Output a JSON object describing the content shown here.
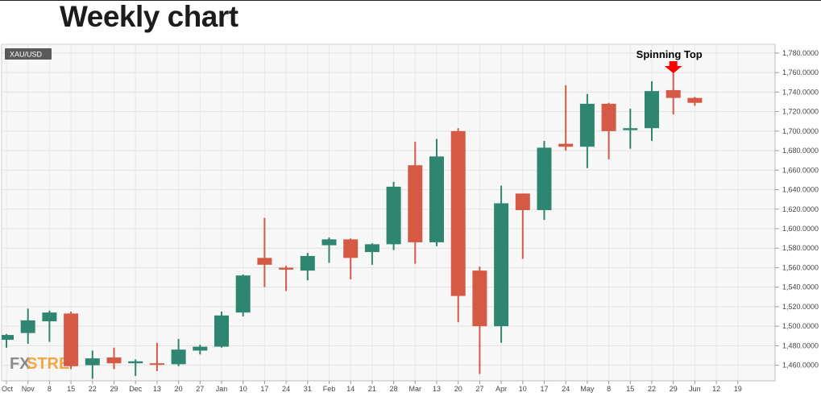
{
  "page": {
    "title": "Weekly chart"
  },
  "chart_data": {
    "type": "candlestick",
    "symbol": "XAU/USD",
    "title": "Weekly chart",
    "ylim": [
      1444,
      1789
    ],
    "y_ticks": [
      "1,460.0000",
      "1,480.0000",
      "1,500.0000",
      "1,520.0000",
      "1,540.0000",
      "1,560.0000",
      "1,580.0000",
      "1,600.0000",
      "1,620.0000",
      "1,640.0000",
      "1,660.0000",
      "1,680.0000",
      "1,700.0000",
      "1,720.0000",
      "1,740.0000",
      "1,760.0000",
      "1,780.0000"
    ],
    "y_tick_values": [
      1460,
      1480,
      1500,
      1520,
      1540,
      1560,
      1580,
      1600,
      1620,
      1640,
      1660,
      1680,
      1700,
      1720,
      1740,
      1760,
      1780
    ],
    "x_ticks": [
      "Oct",
      "Nov",
      "8",
      "15",
      "22",
      "29",
      "Dec",
      "13",
      "20",
      "27",
      "Jan",
      "10",
      "17",
      "24",
      "31",
      "Feb",
      "14",
      "21",
      "28",
      "Mar",
      "13",
      "20",
      "27",
      "Apr",
      "10",
      "17",
      "24",
      "May",
      "8",
      "15",
      "22",
      "29",
      "Jun",
      "12",
      "19"
    ],
    "up_color": "#2e8570",
    "down_color": "#d45a45",
    "candles": [
      {
        "o": 1486,
        "h": 1492,
        "l": 1478,
        "c": 1491
      },
      {
        "o": 1493,
        "h": 1518,
        "l": 1482,
        "c": 1506
      },
      {
        "o": 1505,
        "h": 1516,
        "l": 1484,
        "c": 1514
      },
      {
        "o": 1513,
        "h": 1515,
        "l": 1456,
        "c": 1459
      },
      {
        "o": 1460,
        "h": 1475,
        "l": 1446,
        "c": 1467
      },
      {
        "o": 1468,
        "h": 1478,
        "l": 1456,
        "c": 1462
      },
      {
        "o": 1462,
        "h": 1466,
        "l": 1449,
        "c": 1464
      },
      {
        "o": 1462,
        "h": 1483,
        "l": 1454,
        "c": 1461
      },
      {
        "o": 1461,
        "h": 1487,
        "l": 1459,
        "c": 1476
      },
      {
        "o": 1475,
        "h": 1481,
        "l": 1471,
        "c": 1479
      },
      {
        "o": 1479,
        "h": 1515,
        "l": 1478,
        "c": 1511
      },
      {
        "o": 1514,
        "h": 1553,
        "l": 1510,
        "c": 1552
      },
      {
        "o": 1570,
        "h": 1611,
        "l": 1540,
        "c": 1563
      },
      {
        "o": 1560,
        "h": 1562,
        "l": 1536,
        "c": 1558
      },
      {
        "o": 1557,
        "h": 1575,
        "l": 1547,
        "c": 1572
      },
      {
        "o": 1583,
        "h": 1591,
        "l": 1565,
        "c": 1589
      },
      {
        "o": 1589,
        "h": 1590,
        "l": 1548,
        "c": 1570
      },
      {
        "o": 1576,
        "h": 1585,
        "l": 1563,
        "c": 1584
      },
      {
        "o": 1584,
        "h": 1648,
        "l": 1578,
        "c": 1643
      },
      {
        "o": 1665,
        "h": 1689,
        "l": 1564,
        "c": 1586
      },
      {
        "o": 1586,
        "h": 1692,
        "l": 1582,
        "c": 1674
      },
      {
        "o": 1700,
        "h": 1703,
        "l": 1504,
        "c": 1531
      },
      {
        "o": 1557,
        "h": 1561,
        "l": 1451,
        "c": 1500
      },
      {
        "o": 1500,
        "h": 1644,
        "l": 1483,
        "c": 1626
      },
      {
        "o": 1636,
        "h": 1636,
        "l": 1569,
        "c": 1619
      },
      {
        "o": 1619,
        "h": 1690,
        "l": 1609,
        "c": 1683
      },
      {
        "o": 1687,
        "h": 1747,
        "l": 1680,
        "c": 1684
      },
      {
        "o": 1684,
        "h": 1738,
        "l": 1662,
        "c": 1728
      },
      {
        "o": 1728,
        "h": 1729,
        "l": 1671,
        "c": 1700
      },
      {
        "o": 1701,
        "h": 1723,
        "l": 1682,
        "c": 1703
      },
      {
        "o": 1703,
        "h": 1751,
        "l": 1690,
        "c": 1741
      },
      {
        "o": 1742,
        "h": 1765,
        "l": 1717,
        "c": 1734
      },
      {
        "o": 1734,
        "h": 1735,
        "l": 1726,
        "c": 1729
      }
    ],
    "annotation": {
      "label": "Spinning Top",
      "color": "#ff0000"
    },
    "watermark": {
      "part1": "FX",
      "part2": "STRE"
    },
    "grid": true
  }
}
